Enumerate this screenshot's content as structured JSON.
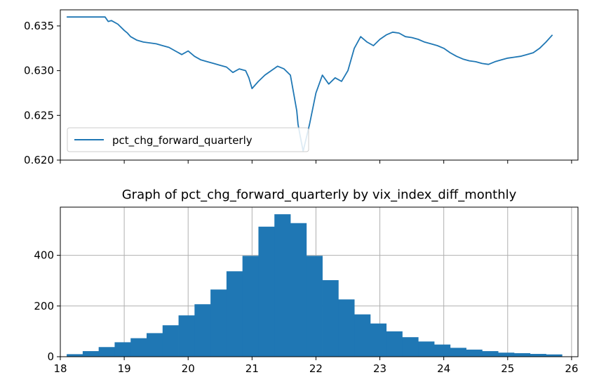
{
  "colors": {
    "series": "#1f77b4",
    "grid": "#b0b0b0",
    "axis": "#000000",
    "background": "#ffffff"
  },
  "chart_data": [
    {
      "type": "line",
      "title": "",
      "xlabel": "",
      "ylabel": "",
      "grid": false,
      "legend": {
        "placement": "lower-left",
        "entries": [
          "pct_chg_forward_quarterly"
        ]
      },
      "xlim": [
        18.0,
        26.1
      ],
      "ylim": [
        0.62,
        0.6368
      ],
      "x_ticks": [
        18,
        19,
        20,
        21,
        22,
        23,
        24,
        25,
        26
      ],
      "x_tick_labels_shown": false,
      "y_ticks": [
        0.62,
        0.625,
        0.63,
        0.635
      ],
      "y_tick_labels": [
        "0.620",
        "0.625",
        "0.630",
        "0.635"
      ],
      "series": [
        {
          "name": "pct_chg_forward_quarterly",
          "x": [
            18.1,
            18.4,
            18.7,
            18.75,
            18.8,
            18.9,
            19.0,
            19.05,
            19.1,
            19.2,
            19.3,
            19.4,
            19.5,
            19.6,
            19.7,
            19.8,
            19.9,
            20.0,
            20.1,
            20.2,
            20.3,
            20.4,
            20.5,
            20.6,
            20.7,
            20.8,
            20.9,
            20.95,
            21.0,
            21.1,
            21.2,
            21.3,
            21.4,
            21.5,
            21.6,
            21.65,
            21.7,
            21.72,
            21.75,
            21.8,
            21.9,
            22.0,
            22.1,
            22.2,
            22.3,
            22.4,
            22.5,
            22.6,
            22.7,
            22.8,
            22.9,
            23.0,
            23.1,
            23.2,
            23.3,
            23.4,
            23.5,
            23.6,
            23.7,
            23.8,
            23.9,
            24.0,
            24.1,
            24.2,
            24.3,
            24.4,
            24.5,
            24.6,
            24.7,
            24.8,
            24.9,
            25.0,
            25.1,
            25.2,
            25.3,
            25.4,
            25.5,
            25.6,
            25.7
          ],
          "values": [
            0.636,
            0.636,
            0.636,
            0.6355,
            0.6356,
            0.6352,
            0.6345,
            0.6342,
            0.6338,
            0.6334,
            0.6332,
            0.6331,
            0.633,
            0.6328,
            0.6326,
            0.6322,
            0.6318,
            0.6322,
            0.6316,
            0.6312,
            0.631,
            0.6308,
            0.6306,
            0.6304,
            0.6298,
            0.6302,
            0.63,
            0.6292,
            0.628,
            0.6288,
            0.6295,
            0.63,
            0.6305,
            0.6302,
            0.6295,
            0.6275,
            0.6255,
            0.624,
            0.6228,
            0.621,
            0.624,
            0.6275,
            0.6295,
            0.6285,
            0.6292,
            0.6288,
            0.63,
            0.6325,
            0.6338,
            0.6332,
            0.6328,
            0.6335,
            0.634,
            0.6343,
            0.6342,
            0.6338,
            0.6337,
            0.6335,
            0.6332,
            0.633,
            0.6328,
            0.6325,
            0.632,
            0.6316,
            0.6313,
            0.6311,
            0.631,
            0.6308,
            0.6307,
            0.631,
            0.6312,
            0.6314,
            0.6315,
            0.6316,
            0.6318,
            0.632,
            0.6325,
            0.6332,
            0.634
          ]
        }
      ]
    },
    {
      "type": "bar",
      "title": "Graph of pct_chg_forward_quarterly by vix_index_diff_monthly",
      "xlabel": "",
      "ylabel": "",
      "grid": true,
      "xlim": [
        18.0,
        26.1
      ],
      "ylim": [
        0,
        590
      ],
      "x_ticks": [
        18,
        19,
        20,
        21,
        22,
        23,
        24,
        25,
        26
      ],
      "x_tick_labels": [
        "18",
        "19",
        "20",
        "21",
        "22",
        "23",
        "24",
        "25",
        "26"
      ],
      "y_ticks": [
        0,
        200,
        400
      ],
      "y_tick_labels": [
        "0",
        "200",
        "400"
      ],
      "bin_edges": [
        18.1,
        18.35,
        18.6,
        18.85,
        19.1,
        19.35,
        19.6,
        19.85,
        20.1,
        20.35,
        20.6,
        20.85,
        21.1,
        21.35,
        21.6,
        21.85,
        22.1,
        22.35,
        22.6,
        22.85,
        23.1,
        23.35,
        23.6,
        23.85,
        24.1,
        24.35,
        24.6,
        24.85,
        25.1,
        25.35,
        25.6,
        25.85
      ],
      "values": [
        10,
        22,
        38,
        57,
        73,
        93,
        124,
        163,
        207,
        265,
        337,
        398,
        513,
        562,
        527,
        398,
        302,
        226,
        167,
        131,
        100,
        77,
        60,
        48,
        35,
        28,
        22,
        16,
        14,
        11,
        9
      ]
    }
  ]
}
